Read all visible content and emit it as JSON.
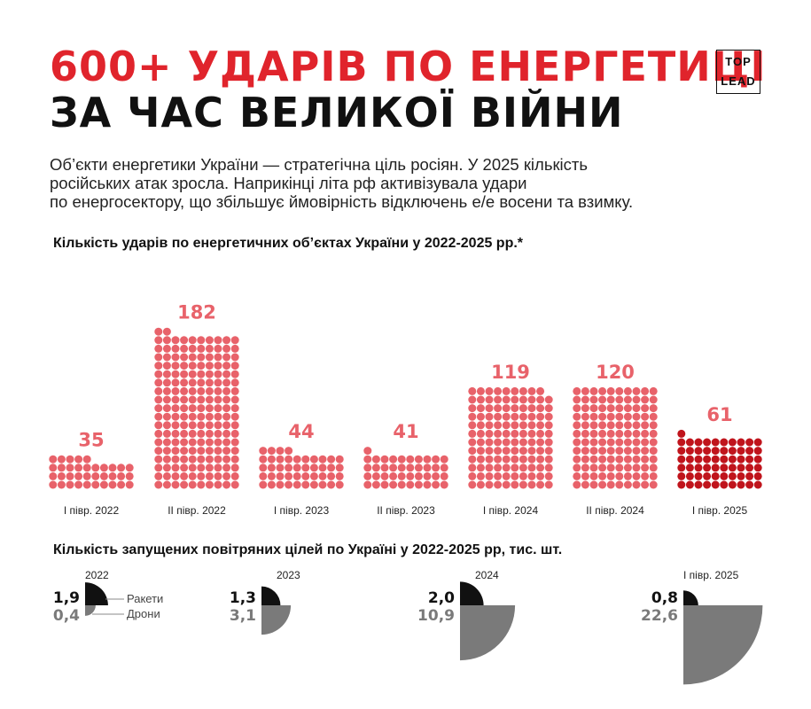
{
  "header": {
    "title_line1": "600+ УДАРІВ ПО ЕНЕРГЕТИЦІ",
    "title_line2": "ЗА ЧАС ВЕЛИКОЇ ВІЙНИ",
    "logo_top": "TOP",
    "logo_bottom": "LEAD",
    "description_lines": [
      "Об’єкти енергетики України — стратегічна ціль росіян. У 2025 кількість",
      "російських атак зросла. Наприкінці літа рф активізувала удари",
      "по енергосектору, що збільшує ймовірність відключень е/е восени та взимку."
    ]
  },
  "colors": {
    "accent_red": "#e0242c",
    "dot_light": "#e8626a",
    "dot_dark": "#c0141c",
    "black": "#111111",
    "gray": "#7a7a7a"
  },
  "chart_data": [
    {
      "type": "bar",
      "title": "Кількість ударів по енергетичних об’єктах України у 2022-2025 рр.*",
      "categories": [
        "І півр. 2022",
        "ІІ півр. 2022",
        "І півр. 2023",
        "ІІ півр. 2023",
        "І півр. 2024",
        "ІІ півр. 2024",
        "І півр.  2025"
      ],
      "values": [
        35,
        182,
        44,
        41,
        119,
        120,
        61
      ],
      "highlight_index": 6,
      "representation": "dot grid, one dot per strike"
    },
    {
      "type": "pie",
      "title": "Кількість запущених повітряних цілей по Україні у 2022-2025 рр, тис. шт.",
      "representation": "quarter circles, area proportional to value",
      "series_labels": [
        "Ракети",
        "Дрони"
      ],
      "groups": [
        {
          "label": "2022",
          "rockets": 1.9,
          "drones": 0.4,
          "rockets_text": "1,9",
          "drones_text": "0,4"
        },
        {
          "label": "2023",
          "rockets": 1.3,
          "drones": 3.1,
          "rockets_text": "1,3",
          "drones_text": "3,1"
        },
        {
          "label": "2024",
          "rockets": 2.0,
          "drones": 10.9,
          "rockets_text": "2,0",
          "drones_text": "10,9"
        },
        {
          "label": "І півр.  2025",
          "rockets": 0.8,
          "drones": 22.6,
          "rockets_text": "0,8",
          "drones_text": "22,6"
        }
      ]
    }
  ]
}
